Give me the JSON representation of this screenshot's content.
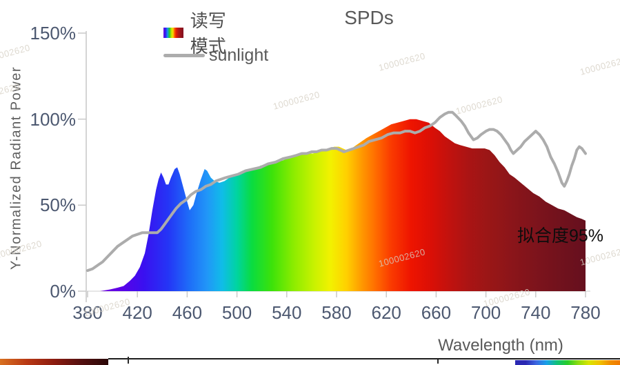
{
  "page": {
    "watermark": "100002620"
  },
  "chart_data": {
    "type": "area",
    "title": "SPDs",
    "xlabel": "Wavelength (nm)",
    "ylabel": "Y-Normalized Radiant Power",
    "annotation": "拟合度95%",
    "grid": false,
    "legend_position": "top-left",
    "x_axis": {
      "min": 380,
      "max": 780,
      "unit": "nm",
      "ticks": [
        380,
        420,
        460,
        500,
        540,
        580,
        620,
        660,
        700,
        740,
        780
      ]
    },
    "y_axis": {
      "min": 0,
      "max": 150,
      "ticks": [
        {
          "value": 0,
          "label": "0%"
        },
        {
          "value": 50,
          "label": "50%"
        },
        {
          "value": 100,
          "label": "100%"
        },
        {
          "value": 150,
          "label": "150%"
        }
      ]
    },
    "series": [
      {
        "name": "读写模式",
        "type": "area",
        "fill": "spectrum-gradient",
        "points": [
          [
            380,
            0
          ],
          [
            390,
            0
          ],
          [
            398,
            1
          ],
          [
            404,
            2
          ],
          [
            409,
            3
          ],
          [
            414,
            6
          ],
          [
            418,
            9
          ],
          [
            422,
            14
          ],
          [
            426,
            22
          ],
          [
            429,
            33
          ],
          [
            432,
            47
          ],
          [
            435,
            59
          ],
          [
            437,
            65
          ],
          [
            439,
            69
          ],
          [
            441,
            66
          ],
          [
            443,
            62
          ],
          [
            445,
            62
          ],
          [
            447,
            66
          ],
          [
            450,
            71
          ],
          [
            452,
            72
          ],
          [
            454,
            68
          ],
          [
            457,
            60
          ],
          [
            460,
            52
          ],
          [
            462,
            47
          ],
          [
            465,
            50
          ],
          [
            468,
            58
          ],
          [
            471,
            65
          ],
          [
            474,
            71
          ],
          [
            476,
            70
          ],
          [
            479,
            66
          ],
          [
            482,
            64
          ],
          [
            486,
            63
          ],
          [
            490,
            64
          ],
          [
            494,
            66
          ],
          [
            499,
            67
          ],
          [
            504,
            69
          ],
          [
            509,
            70
          ],
          [
            514,
            71
          ],
          [
            519,
            73
          ],
          [
            525,
            74
          ],
          [
            531,
            75
          ],
          [
            537,
            76
          ],
          [
            543,
            78
          ],
          [
            549,
            79
          ],
          [
            555,
            80
          ],
          [
            561,
            80
          ],
          [
            566,
            81
          ],
          [
            571,
            82
          ],
          [
            575,
            83
          ],
          [
            578,
            84
          ],
          [
            582,
            84
          ],
          [
            585,
            83
          ],
          [
            588,
            82
          ],
          [
            592,
            83
          ],
          [
            596,
            85
          ],
          [
            600,
            87
          ],
          [
            604,
            89
          ],
          [
            609,
            91
          ],
          [
            614,
            93
          ],
          [
            619,
            95
          ],
          [
            624,
            97
          ],
          [
            629,
            98
          ],
          [
            634,
            99
          ],
          [
            639,
            100
          ],
          [
            644,
            100
          ],
          [
            649,
            99
          ],
          [
            654,
            98
          ],
          [
            659,
            95
          ],
          [
            663,
            93
          ],
          [
            667,
            90
          ],
          [
            671,
            88
          ],
          [
            675,
            86
          ],
          [
            679,
            85
          ],
          [
            684,
            84
          ],
          [
            689,
            83
          ],
          [
            694,
            83
          ],
          [
            699,
            83
          ],
          [
            703,
            82
          ],
          [
            707,
            79
          ],
          [
            711,
            75
          ],
          [
            715,
            72
          ],
          [
            719,
            68
          ],
          [
            723,
            66
          ],
          [
            728,
            63
          ],
          [
            733,
            60
          ],
          [
            738,
            57
          ],
          [
            743,
            55
          ],
          [
            748,
            52
          ],
          [
            753,
            50
          ],
          [
            758,
            48
          ],
          [
            763,
            47
          ],
          [
            768,
            45
          ],
          [
            773,
            43
          ],
          [
            777,
            42
          ],
          [
            780,
            41
          ]
        ]
      },
      {
        "name": "sunlight",
        "type": "line",
        "color": "#acacac",
        "points": [
          [
            380,
            12
          ],
          [
            384,
            13
          ],
          [
            388,
            15
          ],
          [
            392,
            17
          ],
          [
            396,
            20
          ],
          [
            400,
            23
          ],
          [
            404,
            26
          ],
          [
            408,
            28
          ],
          [
            412,
            30
          ],
          [
            416,
            32
          ],
          [
            420,
            33
          ],
          [
            424,
            34
          ],
          [
            428,
            34
          ],
          [
            432,
            34
          ],
          [
            436,
            34
          ],
          [
            439,
            36
          ],
          [
            442,
            39
          ],
          [
            445,
            42
          ],
          [
            448,
            45
          ],
          [
            451,
            48
          ],
          [
            455,
            51
          ],
          [
            459,
            53
          ],
          [
            463,
            56
          ],
          [
            467,
            58
          ],
          [
            471,
            59
          ],
          [
            475,
            61
          ],
          [
            479,
            62
          ],
          [
            483,
            64
          ],
          [
            487,
            65
          ],
          [
            491,
            66
          ],
          [
            496,
            67
          ],
          [
            501,
            68
          ],
          [
            507,
            70
          ],
          [
            513,
            71
          ],
          [
            519,
            72
          ],
          [
            525,
            74
          ],
          [
            531,
            75
          ],
          [
            537,
            77
          ],
          [
            543,
            78
          ],
          [
            548,
            79
          ],
          [
            552,
            80
          ],
          [
            556,
            80
          ],
          [
            560,
            81
          ],
          [
            564,
            81
          ],
          [
            568,
            82
          ],
          [
            572,
            82
          ],
          [
            576,
            83
          ],
          [
            580,
            83
          ],
          [
            583,
            82
          ],
          [
            586,
            81
          ],
          [
            590,
            82
          ],
          [
            594,
            83
          ],
          [
            598,
            84
          ],
          [
            602,
            85
          ],
          [
            606,
            87
          ],
          [
            611,
            88
          ],
          [
            616,
            89
          ],
          [
            621,
            91
          ],
          [
            626,
            92
          ],
          [
            631,
            92
          ],
          [
            635,
            93
          ],
          [
            639,
            93
          ],
          [
            643,
            92
          ],
          [
            647,
            93
          ],
          [
            651,
            95
          ],
          [
            655,
            96
          ],
          [
            659,
            98
          ],
          [
            663,
            101
          ],
          [
            667,
            103
          ],
          [
            670,
            104
          ],
          [
            673,
            104
          ],
          [
            676,
            102
          ],
          [
            680,
            99
          ],
          [
            683,
            96
          ],
          [
            686,
            92
          ],
          [
            690,
            88
          ],
          [
            693,
            89
          ],
          [
            696,
            91
          ],
          [
            700,
            93
          ],
          [
            703,
            94
          ],
          [
            706,
            94
          ],
          [
            709,
            93
          ],
          [
            712,
            91
          ],
          [
            715,
            88
          ],
          [
            718,
            85
          ],
          [
            720,
            82
          ],
          [
            722,
            80
          ],
          [
            725,
            82
          ],
          [
            728,
            84
          ],
          [
            731,
            87
          ],
          [
            734,
            89
          ],
          [
            737,
            91
          ],
          [
            740,
            93
          ],
          [
            743,
            91
          ],
          [
            746,
            88
          ],
          [
            749,
            84
          ],
          [
            752,
            78
          ],
          [
            755,
            74
          ],
          [
            758,
            69
          ],
          [
            761,
            63
          ],
          [
            763,
            61
          ],
          [
            765,
            64
          ],
          [
            767,
            68
          ],
          [
            769,
            73
          ],
          [
            771,
            77
          ],
          [
            773,
            82
          ],
          [
            775,
            84
          ],
          [
            777,
            83
          ],
          [
            779,
            81
          ],
          [
            780,
            80
          ]
        ]
      }
    ],
    "spectrum_gradient": [
      [
        380,
        "#7a00d8"
      ],
      [
        405,
        "#5f00e6"
      ],
      [
        425,
        "#3a10f0"
      ],
      [
        445,
        "#2436f6"
      ],
      [
        462,
        "#1e6ef8"
      ],
      [
        476,
        "#2196f8"
      ],
      [
        488,
        "#10bce8"
      ],
      [
        500,
        "#00d4a0"
      ],
      [
        512,
        "#0adc40"
      ],
      [
        528,
        "#3ce20a"
      ],
      [
        545,
        "#8aec00"
      ],
      [
        562,
        "#c8f200"
      ],
      [
        575,
        "#f2f200"
      ],
      [
        588,
        "#ffd000"
      ],
      [
        600,
        "#ff9a00"
      ],
      [
        612,
        "#ff6a00"
      ],
      [
        624,
        "#fa3a00"
      ],
      [
        640,
        "#ee1400"
      ],
      [
        656,
        "#da0f06"
      ],
      [
        670,
        "#c2120e"
      ],
      [
        686,
        "#aa1414"
      ],
      [
        702,
        "#9a1616"
      ],
      [
        722,
        "#8a151a"
      ],
      [
        745,
        "#7a131c"
      ],
      [
        765,
        "#6e111d"
      ],
      [
        780,
        "#66101e"
      ]
    ]
  },
  "colors": {
    "sunlight_line": "#acacac",
    "axis": "#c9c9c9",
    "tick_label": "#4c5870",
    "title": "#595959",
    "annotation": "#0d0d0d"
  },
  "bottom_strip": {
    "left_gradient": [
      "#d87020",
      "#b83814",
      "#8c1c10",
      "#541010",
      "#2a0808"
    ],
    "border_color": "#1c1c1c",
    "right_gradient": [
      "#2a28b2",
      "#2a28b2",
      "#3c66e0",
      "#18a0e8",
      "#10c078",
      "#28cc28",
      "#8cdc10",
      "#d8e400",
      "#f0c400",
      "#f09000",
      "#f07800"
    ]
  }
}
